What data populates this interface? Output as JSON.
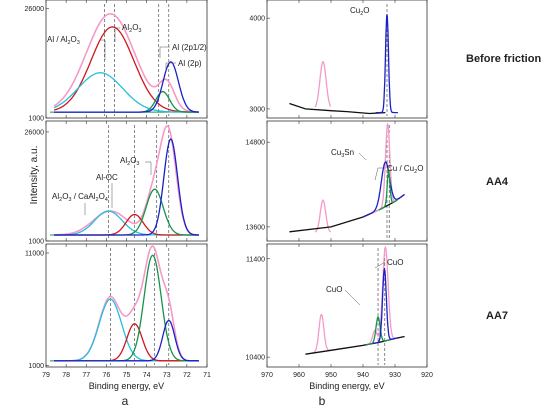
{
  "figure": {
    "sample_labels": [
      "Before friction",
      "AA4",
      "AA7"
    ],
    "panel_labels": [
      "a",
      "b"
    ],
    "y_axis_label": "Intensity, a.u."
  },
  "chart_data": [
    {
      "type": "line",
      "column": "a",
      "row": "Before friction",
      "xlabel": "",
      "x_reversed": true,
      "xlim": [
        79,
        71
      ],
      "ylim": [
        1000,
        28000
      ],
      "yticks": [
        1000,
        26000
      ],
      "xticks": [
        79,
        78,
        77,
        76,
        75,
        74,
        73,
        72,
        71
      ],
      "colors": {
        "envelope": "#f59ac8",
        "oxide": "#d0161d",
        "hydroxide": "#23bfe0",
        "al2p12": "#15944a",
        "al2p": "#1a20c8",
        "background": "#15944a"
      },
      "series": [
        {
          "role": "envelope",
          "peaks": [
            {
              "center": 75.8,
              "height": 22500,
              "fwhm": 2.8
            },
            {
              "center": 73.0,
              "height": 6000,
              "fwhm": 0.9
            }
          ]
        },
        {
          "role": "oxide",
          "peaks": [
            {
              "center": 75.7,
              "height": 19500,
              "fwhm": 2.5
            }
          ]
        },
        {
          "role": "hydroxide",
          "peaks": [
            {
              "center": 76.3,
              "height": 9000,
              "fwhm": 2.6
            }
          ]
        },
        {
          "role": "al2p12",
          "peaks": [
            {
              "center": 73.2,
              "height": 4700,
              "fwhm": 0.8
            }
          ]
        },
        {
          "role": "al2p",
          "peaks": [
            {
              "center": 72.8,
              "height": 11500,
              "fwhm": 0.9
            }
          ]
        }
      ],
      "vlines": [
        76.1,
        75.6,
        73.4,
        72.9
      ],
      "annotations": [
        {
          "text": "Al / Al",
          "sub": "2",
          "text2": "O",
          "sub2": "3"
        },
        {
          "text": "Al",
          "sub": "2",
          "text2": "O",
          "sub2": "3"
        },
        {
          "text": "Al (2p1/2)"
        },
        {
          "text": "Al (2p)"
        }
      ]
    },
    {
      "type": "line",
      "column": "a",
      "row": "AA4",
      "xlabel": "",
      "x_reversed": true,
      "xlim": [
        79,
        71
      ],
      "ylim": [
        1000,
        28500
      ],
      "yticks": [
        1000,
        26000
      ],
      "xticks": [
        79,
        78,
        77,
        76,
        75,
        74,
        73,
        72,
        71
      ],
      "series": [
        {
          "role": "envelope",
          "peaks": [
            {
              "center": 75.8,
              "height": 5500,
              "fwhm": 2.0
            },
            {
              "center": 73.6,
              "height": 10000,
              "fwhm": 1.0
            },
            {
              "center": 72.9,
              "height": 22000,
              "fwhm": 0.9
            }
          ]
        },
        {
          "role": "hydroxide",
          "peaks": [
            {
              "center": 75.9,
              "height": 5500,
              "fwhm": 1.6
            }
          ]
        },
        {
          "role": "oxide",
          "peaks": [
            {
              "center": 74.6,
              "height": 4700,
              "fwhm": 1.0
            }
          ]
        },
        {
          "role": "al2p12",
          "peaks": [
            {
              "center": 73.6,
              "height": 10500,
              "fwhm": 1.0
            }
          ]
        },
        {
          "role": "al2p",
          "peaks": [
            {
              "center": 72.8,
              "height": 22000,
              "fwhm": 0.8
            }
          ]
        }
      ],
      "vlines": [
        75.9,
        74.6,
        73.5,
        72.9
      ],
      "annotations": [
        {
          "text": "Al",
          "sub": "2",
          "text2": "O",
          "sub2": "3"
        },
        {
          "text": "Al-OC"
        },
        {
          "text": "Al",
          "sub": "2",
          "text2": "O",
          "sub2": "3",
          "text3": " / CaAl",
          "sub3": "2",
          "text4": "O",
          "sub4": "4"
        }
      ]
    },
    {
      "type": "line",
      "column": "a",
      "row": "AA7",
      "xlabel": "Binding energy, eV",
      "x_reversed": true,
      "xlim": [
        79,
        71
      ],
      "ylim": [
        850,
        11800
      ],
      "yticks": [
        1000,
        11000
      ],
      "xticks": [
        79,
        78,
        77,
        76,
        75,
        74,
        73,
        72,
        71
      ],
      "series": [
        {
          "role": "envelope",
          "peaks": [
            {
              "center": 75.8,
              "height": 5700,
              "fwhm": 1.3
            },
            {
              "center": 74.6,
              "height": 3300,
              "fwhm": 0.9
            },
            {
              "center": 73.7,
              "height": 9900,
              "fwhm": 1.0
            },
            {
              "center": 72.9,
              "height": 3900,
              "fwhm": 0.7
            }
          ]
        },
        {
          "role": "hydroxide",
          "peaks": [
            {
              "center": 75.8,
              "height": 5500,
              "fwhm": 1.3
            }
          ]
        },
        {
          "role": "oxide",
          "peaks": [
            {
              "center": 74.6,
              "height": 3300,
              "fwhm": 0.9
            }
          ]
        },
        {
          "role": "al2p12",
          "peaks": [
            {
              "center": 73.7,
              "height": 9400,
              "fwhm": 1.0
            }
          ]
        },
        {
          "role": "al2p",
          "peaks": [
            {
              "center": 72.9,
              "height": 3600,
              "fwhm": 0.7
            }
          ]
        }
      ],
      "vlines": [
        75.8,
        74.6,
        73.6,
        72.9
      ]
    },
    {
      "type": "line",
      "column": "b",
      "row": "Before friction",
      "xlabel": "",
      "x_reversed": true,
      "xlim": [
        970,
        920
      ],
      "ylim": [
        2900,
        4200
      ],
      "yticks": [
        3000,
        4000
      ],
      "xticks": [
        970,
        960,
        950,
        940,
        930,
        920
      ],
      "series": [
        {
          "role": "satellite",
          "color": "#f59ac8",
          "peaks": [
            {
              "center": 952.5,
              "height": 520,
              "fwhm": 2.3
            }
          ],
          "x_range": [
            955,
            950
          ],
          "base": 3000
        },
        {
          "role": "background",
          "color": "#111111",
          "points": [
            [
              963,
              3060
            ],
            [
              958,
              3000
            ],
            [
              950,
              2980
            ],
            [
              945,
              2970
            ],
            [
              938,
              2950
            ],
            [
              933,
              2960
            ]
          ]
        },
        {
          "role": "cu_peak",
          "color": "#1a20c8",
          "peaks": [
            {
              "center": 932.5,
              "height": 1080,
              "fwhm": 1.1
            }
          ],
          "x_range": [
            936,
            929
          ],
          "base": 2960
        }
      ],
      "vlines": [
        932.5
      ],
      "annotations": [
        {
          "text": "Cu",
          "sub": "2",
          "text2": "O"
        }
      ]
    },
    {
      "type": "line",
      "column": "b",
      "row": "AA4",
      "xlabel": "",
      "x_reversed": true,
      "xlim": [
        970,
        920
      ],
      "ylim": [
        13400,
        15100
      ],
      "yticks": [
        13600,
        14800
      ],
      "xticks": [
        970,
        960,
        950,
        940,
        930,
        920
      ],
      "series": [
        {
          "role": "satellite",
          "color": "#f59ac8",
          "peaks": [
            {
              "center": 952.5,
              "height": 460,
              "fwhm": 2.0
            }
          ],
          "x_range": [
            955,
            950
          ],
          "base": 13520
        },
        {
          "role": "background",
          "color": "#111111",
          "points": [
            [
              963,
              13530
            ],
            [
              950,
              13600
            ],
            [
              940,
              13740
            ],
            [
              935,
              13840
            ],
            [
              930,
              13960
            ],
            [
              927,
              14060
            ]
          ]
        },
        {
          "role": "envelope",
          "color": "#f59ac8",
          "peaks": [
            {
              "center": 932.3,
              "height": 1150,
              "fwhm": 1.6
            }
          ],
          "x_range": [
            938,
            927
          ],
          "base_from": "background"
        },
        {
          "role": "cu_sn",
          "color": "#1a20c8",
          "peaks": [
            {
              "center": 933.0,
              "height": 630,
              "fwhm": 3.0
            }
          ],
          "x_range": [
            940,
            927
          ],
          "base_from": "background"
        },
        {
          "role": "cu",
          "color": "#15944a",
          "peaks": [
            {
              "center": 932.0,
              "height": 480,
              "fwhm": 1.0
            }
          ],
          "x_range": [
            935,
            929
          ],
          "base_from": "background"
        }
      ],
      "vlines": [
        932.5,
        931.8
      ],
      "annotations": [
        {
          "text": "Cu",
          "sub": "3",
          "text2": "Sn"
        },
        {
          "text": "Cu / Cu",
          "sub": "2",
          "text2": "O"
        }
      ]
    },
    {
      "type": "line",
      "column": "b",
      "row": "AA7",
      "xlabel": "Binding energy, eV",
      "x_reversed": true,
      "xlim": [
        970,
        920
      ],
      "ylim": [
        10300,
        11550
      ],
      "yticks": [
        10400,
        11400
      ],
      "xticks": [
        970,
        960,
        950,
        940,
        930,
        920
      ],
      "series": [
        {
          "role": "envelope",
          "color": "#f59ac8",
          "peaks": [
            {
              "center": 953.0,
              "height": 380,
              "fwhm": 1.8
            },
            {
              "center": 933.0,
              "height": 950,
              "fwhm": 2.0
            },
            {
              "center": 936.3,
              "height": 130,
              "fwhm": 1.6
            }
          ],
          "x_range": [
            956,
            927
          ],
          "base_from": "background"
        },
        {
          "role": "background",
          "color": "#111111",
          "points": [
            [
              958,
              10430
            ],
            [
              950,
              10470
            ],
            [
              940,
              10520
            ],
            [
              935,
              10550
            ],
            [
              930,
              10590
            ],
            [
              927,
              10610
            ]
          ]
        },
        {
          "role": "cuo_low",
          "color": "#15944a",
          "peaks": [
            {
              "center": 935.3,
              "height": 260,
              "fwhm": 1.5
            }
          ],
          "x_range": [
            939,
            931
          ],
          "base_from": "background"
        },
        {
          "role": "cuo_high",
          "color": "#1a20c8",
          "peaks": [
            {
              "center": 933.3,
              "height": 730,
              "fwhm": 1.4
            }
          ],
          "x_range": [
            937,
            929
          ],
          "base_from": "background"
        }
      ],
      "vlines": [
        935.3,
        933.2
      ],
      "annotations": [
        {
          "text": "CuO"
        },
        {
          "text": "CuO"
        }
      ]
    }
  ]
}
